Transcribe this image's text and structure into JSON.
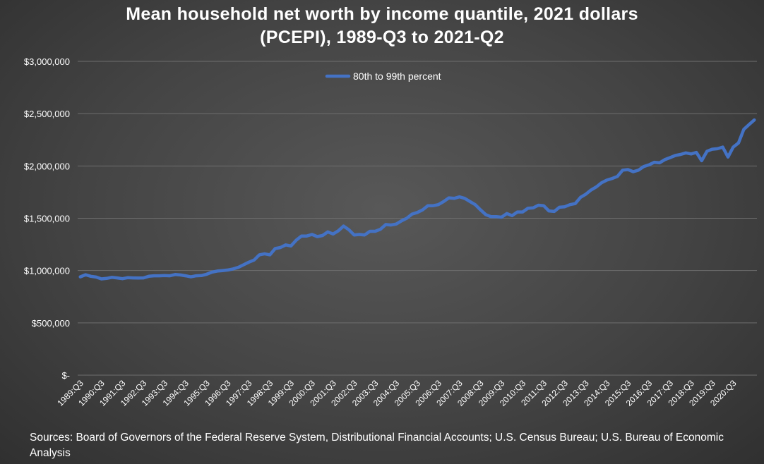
{
  "chart_data": {
    "type": "line",
    "title_line1": "Mean household net worth by income quantile, 2021 dollars",
    "title_line2": "(PCEPI), 1989-Q3 to 2021-Q2",
    "source": "Sources: Board of Governors of the Federal Reserve System, Distributional Financial Accounts; U.S. Census Bureau; U.S. Bureau of Economic Analysis",
    "xlabel": "",
    "ylabel": "",
    "ylim": [
      0,
      3000000
    ],
    "yticks": [
      0,
      500000,
      1000000,
      1500000,
      2000000,
      2500000,
      3000000
    ],
    "ytick_labels": [
      "$-",
      "$500,000",
      "$1,000,000",
      "$1,500,000",
      "$2,000,000",
      "$2,500,000",
      "$3,000,000"
    ],
    "x_start": "1989:Q3",
    "x_end": "2021:Q2",
    "xtick_labels": [
      "1989:Q3",
      "1990:Q3",
      "1991:Q3",
      "1992:Q3",
      "1993:Q3",
      "1994:Q3",
      "1995:Q3",
      "1996:Q3",
      "1997:Q3",
      "1998:Q3",
      "1999:Q3",
      "2000:Q3",
      "2001:Q3",
      "2002:Q3",
      "2003:Q3",
      "2004:Q3",
      "2005:Q3",
      "2006:Q3",
      "2007:Q3",
      "2008:Q3",
      "2009:Q3",
      "2010:Q3",
      "2011:Q3",
      "2012:Q3",
      "2013:Q3",
      "2014:Q3",
      "2015:Q3",
      "2016:Q3",
      "2017:Q3",
      "2018:Q3",
      "2019:Q3",
      "2020:Q3"
    ],
    "grid": true,
    "legend_position": "top",
    "series": [
      {
        "name": "80th to 99th percent",
        "color": "#4472C4",
        "values": [
          940000,
          960000,
          945000,
          938000,
          920000,
          925000,
          935000,
          930000,
          922000,
          932000,
          930000,
          928000,
          930000,
          945000,
          950000,
          950000,
          952000,
          950000,
          962000,
          958000,
          950000,
          940000,
          950000,
          952000,
          965000,
          985000,
          995000,
          1000000,
          1005000,
          1015000,
          1030000,
          1055000,
          1080000,
          1100000,
          1150000,
          1160000,
          1150000,
          1210000,
          1220000,
          1245000,
          1235000,
          1290000,
          1330000,
          1330000,
          1345000,
          1325000,
          1335000,
          1370000,
          1350000,
          1380000,
          1425000,
          1390000,
          1340000,
          1345000,
          1340000,
          1375000,
          1375000,
          1395000,
          1440000,
          1435000,
          1445000,
          1475000,
          1500000,
          1540000,
          1555000,
          1580000,
          1620000,
          1620000,
          1630000,
          1660000,
          1695000,
          1690000,
          1705000,
          1690000,
          1660000,
          1630000,
          1580000,
          1535000,
          1515000,
          1515000,
          1510000,
          1545000,
          1525000,
          1560000,
          1560000,
          1595000,
          1600000,
          1625000,
          1620000,
          1570000,
          1565000,
          1605000,
          1610000,
          1630000,
          1640000,
          1700000,
          1730000,
          1770000,
          1800000,
          1840000,
          1865000,
          1880000,
          1900000,
          1960000,
          1965000,
          1945000,
          1960000,
          1995000,
          2010000,
          2035000,
          2030000,
          2060000,
          2080000,
          2100000,
          2110000,
          2125000,
          2115000,
          2130000,
          2050000,
          2140000,
          2160000,
          2165000,
          2180000,
          2085000,
          2180000,
          2220000,
          2350000,
          2395000,
          2440000
        ]
      }
    ]
  }
}
